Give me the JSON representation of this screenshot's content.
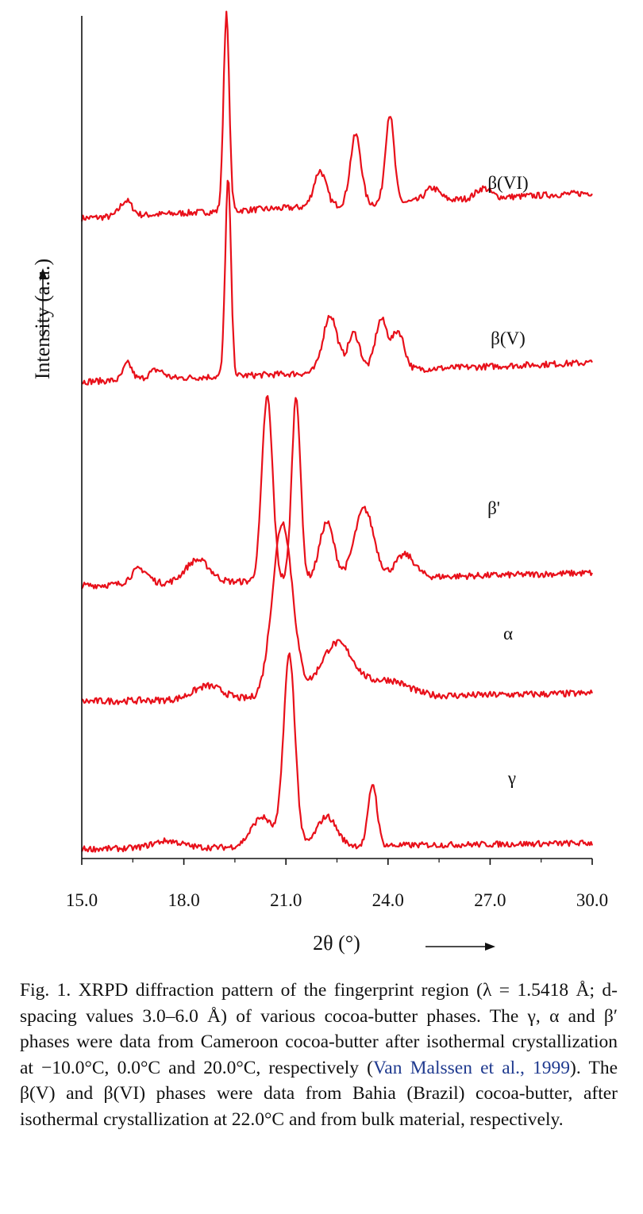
{
  "chart_data": {
    "type": "line",
    "xlabel": "2θ (°)",
    "ylabel": "Intensity  (a.u.)",
    "xlim": [
      15.0,
      30.0
    ],
    "xticks": [
      "15.0",
      "18.0",
      "21.0",
      "24.0",
      "27.0",
      "30.0"
    ],
    "line_color": "#e8101a",
    "series": [
      {
        "name": "β(VI)",
        "label": "β(VI)",
        "baseline": 0.0,
        "endpoint": [
          0.2,
          0.2
        ],
        "peaks": [
          [
            16.3,
            0.12,
            0.25
          ],
          [
            19.25,
            1.55,
            0.12
          ],
          [
            22.0,
            0.28,
            0.25
          ],
          [
            23.05,
            0.55,
            0.22
          ],
          [
            24.05,
            0.7,
            0.18
          ],
          [
            25.3,
            0.1,
            0.3
          ],
          [
            26.8,
            0.08,
            0.3
          ]
        ]
      },
      {
        "name": "β(V)",
        "label": "β(V)",
        "baseline": 0.0,
        "endpoint": [
          0.15,
          0.15
        ],
        "peaks": [
          [
            16.35,
            0.13,
            0.18
          ],
          [
            17.2,
            0.07,
            0.3
          ],
          [
            19.3,
            1.55,
            0.12
          ],
          [
            22.3,
            0.45,
            0.3
          ],
          [
            23.0,
            0.3,
            0.25
          ],
          [
            23.8,
            0.4,
            0.25
          ],
          [
            24.3,
            0.3,
            0.25
          ]
        ]
      },
      {
        "name": "β'",
        "label": "β'",
        "baseline": 0.0,
        "endpoint": [
          0.1,
          0.1
        ],
        "peaks": [
          [
            16.7,
            0.12,
            0.35
          ],
          [
            18.4,
            0.18,
            0.5
          ],
          [
            20.45,
            1.45,
            0.22
          ],
          [
            21.3,
            1.45,
            0.18
          ],
          [
            22.2,
            0.45,
            0.3
          ],
          [
            23.3,
            0.55,
            0.4
          ],
          [
            24.5,
            0.18,
            0.4
          ]
        ]
      },
      {
        "name": "α",
        "label": "α",
        "baseline": 0.0,
        "endpoint": [
          0.06,
          0.06
        ],
        "peaks": [
          [
            18.7,
            0.1,
            0.6
          ],
          [
            20.9,
            1.3,
            0.42
          ],
          [
            22.5,
            0.4,
            0.7
          ],
          [
            24.0,
            0.12,
            0.8
          ]
        ]
      },
      {
        "name": "γ",
        "label": "γ",
        "baseline": 0.0,
        "endpoint": [
          0.05,
          0.05
        ],
        "peaks": [
          [
            17.5,
            0.06,
            0.6
          ],
          [
            20.3,
            0.25,
            0.45
          ],
          [
            21.1,
            1.6,
            0.24
          ],
          [
            22.2,
            0.25,
            0.4
          ],
          [
            23.55,
            0.52,
            0.18
          ]
        ]
      }
    ]
  },
  "caption": {
    "lead": "Fig. 1. XRPD diffraction pattern of the fingerprint region (λ = 1.5418 Å; d-spacing values 3.0–6.0 Å) of various cocoa-butter phases. The γ, α and β′ phases were data from Cameroon cocoa-butter after isothermal crystallization at −10.0°C, 0.0°C and 20.0°C, respectively (",
    "link": "Van Malssen et al., 1999",
    "tail": "). The β(V) and β(VI) phases were data from Bahia (Brazil) cocoa-butter, after isothermal crystallization at 22.0°C and from bulk material, respectively."
  }
}
